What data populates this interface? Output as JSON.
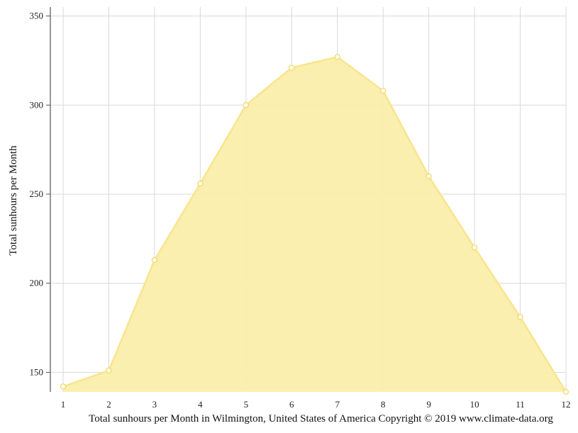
{
  "chart_data": {
    "type": "area",
    "caption": "Total sunhours per Month in Wilmington, United States of America Copyright © 2019 www.climate-data.org",
    "ylabel": "Total sunhours per Month",
    "xlabel": "",
    "x": [
      1,
      2,
      3,
      4,
      5,
      6,
      7,
      8,
      9,
      10,
      11,
      12
    ],
    "values": [
      142,
      151,
      213,
      256,
      300,
      321,
      327,
      308,
      260,
      220,
      181,
      139
    ],
    "xticks": [
      "1",
      "2",
      "3",
      "4",
      "5",
      "6",
      "7",
      "8",
      "9",
      "10",
      "11",
      "12"
    ],
    "yticks": [
      150,
      200,
      250,
      300,
      350
    ],
    "ylim": [
      139,
      355
    ],
    "xlim": [
      1,
      12
    ],
    "grid": true,
    "legend": "none",
    "colors": {
      "fill": "#faeeab",
      "line": "#f8e58c",
      "marker_fill": "#ffffff",
      "marker_stroke": "#f0d865",
      "grid": "#d9d9d9",
      "axis": "#555555"
    }
  }
}
